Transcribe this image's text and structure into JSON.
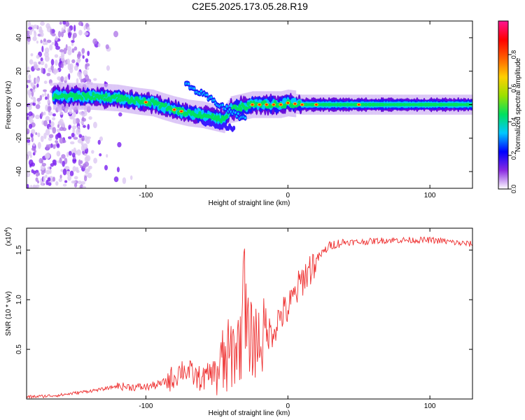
{
  "title": "C2E5.2025.173.05.28.R19",
  "colors": {
    "snr_line": "#ee3030",
    "axis": "#000000"
  },
  "colorbar": {
    "label": "Normalized spectral amplitude",
    "ticks": [
      "0.0",
      "0.2",
      "0.4",
      "0.6",
      "0.8"
    ],
    "tick_values": [
      0,
      0.2,
      0.4,
      0.6,
      0.8
    ],
    "range": [
      0,
      1
    ],
    "colormap": [
      "#ffffff",
      "#8a2be2",
      "#0000ff",
      "#00c8ff",
      "#00e060",
      "#9be000",
      "#ffd000",
      "#ff6000",
      "#ff0000",
      "#ff1493"
    ]
  },
  "chart_data": [
    {
      "type": "heatmap",
      "xlabel": "Height of straight line (km)",
      "ylabel": "Frequency (Hz)",
      "xlim": [
        -184,
        130
      ],
      "ylim": [
        -50,
        50
      ],
      "xticks": [
        -100,
        0,
        100
      ],
      "xtick_labels": [
        "-100",
        "0",
        "100"
      ],
      "yticks": [
        -40,
        -20,
        0,
        20,
        40
      ],
      "ytick_labels": [
        "-40",
        "-20",
        "0",
        "20",
        "40"
      ],
      "ridge": {
        "x": [
          -160,
          -140,
          -120,
          -105,
          -95,
          -88,
          -80,
          -70,
          -60,
          -50,
          -45,
          -40,
          -35,
          -30,
          -25,
          -20,
          -15,
          -10,
          -5,
          0,
          10,
          30,
          60,
          90,
          130
        ],
        "y": [
          5,
          5,
          4,
          2,
          1,
          -1,
          -3,
          -5,
          -6,
          -8,
          -9,
          -3,
          -2,
          -1,
          0,
          0,
          0,
          0,
          0,
          1,
          0,
          0,
          0,
          0,
          0
        ],
        "peak_x": [
          -100,
          -80,
          -75,
          -25,
          -20,
          -15,
          -10,
          -5,
          0,
          5,
          10,
          20,
          50
        ]
      },
      "noise_region_x": [
        -184,
        -140
      ]
    },
    {
      "type": "line",
      "xlabel": "Height of straight line (km)",
      "ylabel": "SNR (10 * v/v)",
      "yscale_label": "(x10",
      "yscale_exp": "4",
      "yscale_close": ")",
      "xlim": [
        -184,
        130
      ],
      "ylim": [
        0,
        1.72
      ],
      "xticks": [
        -100,
        0,
        100
      ],
      "xtick_labels": [
        "-100",
        "0",
        "100"
      ],
      "yticks": [
        0.5,
        1.0,
        1.5
      ],
      "ytick_labels": [
        "0.5",
        "1.0",
        "1.5"
      ],
      "series": [
        {
          "x": [
            -184,
            -170,
            -160,
            -150,
            -140,
            -130,
            -120,
            -110,
            -100,
            -90,
            -80,
            -75,
            -70,
            -65,
            -60,
            -55,
            -50,
            -45,
            -40,
            -35,
            -30,
            -25,
            -20,
            -15,
            -10,
            -5,
            0,
            5,
            10,
            15,
            20,
            25,
            30,
            40,
            50,
            60,
            70,
            80,
            90,
            100,
            110,
            120,
            130
          ],
          "y": [
            0.02,
            0.03,
            0.04,
            0.06,
            0.08,
            0.1,
            0.13,
            0.12,
            0.12,
            0.15,
            0.22,
            0.3,
            0.28,
            0.22,
            0.2,
            0.25,
            0.3,
            0.35,
            0.45,
            0.55,
            0.65,
            0.6,
            0.6,
            0.65,
            0.7,
            0.85,
            0.9,
            1.05,
            1.2,
            1.3,
            1.4,
            1.48,
            1.55,
            1.58,
            1.58,
            1.59,
            1.6,
            1.6,
            1.6,
            1.6,
            1.59,
            1.57,
            1.56
          ]
        }
      ]
    }
  ]
}
